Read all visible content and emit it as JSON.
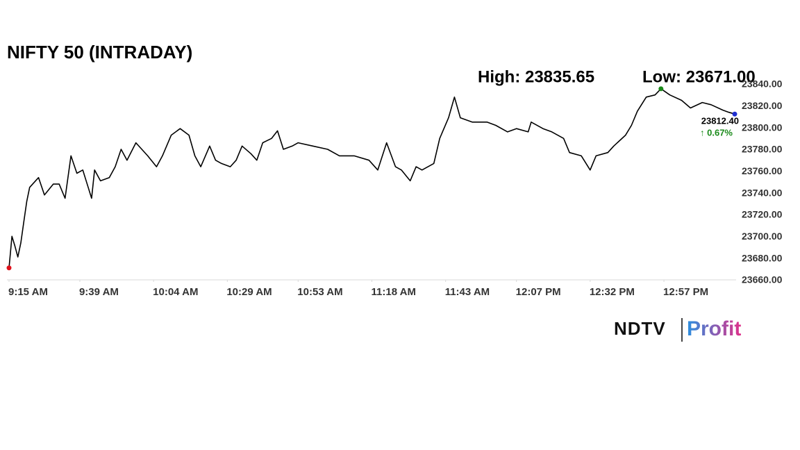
{
  "chart_data": {
    "type": "line",
    "title": "NIFTY 50 (INTRADAY)",
    "annotations": {
      "high": "High: 23835.65",
      "low": "Low: 23671.00",
      "last": "23812.40",
      "change": "↑ 0.67%"
    },
    "logo": {
      "left": "NDTV",
      "right": "Profit"
    },
    "color": "#000000",
    "high_color": "#1a8a1a",
    "low_color": "#e0101a",
    "last_color": "#1f2fd0",
    "change_color": "#1a8a1a",
    "x": [
      "9:15 AM",
      "9:16 AM",
      "9:17 AM",
      "9:18 AM",
      "9:19 AM",
      "9:20 AM",
      "9:21 AM",
      "9:22 AM",
      "9:25 AM",
      "9:27 AM",
      "9:30 AM",
      "9:32 AM",
      "9:34 AM",
      "9:36 AM",
      "9:38 AM",
      "9:40 AM",
      "9:43 AM",
      "9:44 AM",
      "9:46 AM",
      "9:49 AM",
      "9:51 AM",
      "9:53 AM",
      "9:55 AM",
      "9:58 AM",
      "10:00 AM",
      "10:02 AM",
      "10:05 AM",
      "10:07 AM",
      "10:10 AM",
      "10:13 AM",
      "10:16 AM",
      "10:18 AM",
      "10:20 AM",
      "10:23 AM",
      "10:25 AM",
      "10:27 AM",
      "10:30 AM",
      "10:32 AM",
      "10:34 AM",
      "10:37 AM",
      "10:39 AM",
      "10:41 AM",
      "10:44 AM",
      "10:46 AM",
      "10:48 AM",
      "10:51 AM",
      "10:53 AM",
      "10:58 AM",
      "11:03 AM",
      "11:07 AM",
      "11:12 AM",
      "11:17 AM",
      "11:20 AM",
      "11:23 AM",
      "11:26 AM",
      "11:28 AM",
      "11:31 AM",
      "11:33 AM",
      "11:35 AM",
      "11:39 AM",
      "11:41 AM",
      "11:44 AM",
      "11:46 AM",
      "11:48 AM",
      "11:52 AM",
      "11:57 AM",
      "12:00 PM",
      "12:04 PM",
      "12:07 PM",
      "12:11 PM",
      "12:12 PM",
      "12:16 PM",
      "12:19 PM",
      "12:23 PM",
      "12:25 PM",
      "12:29 PM",
      "12:32 PM",
      "12:34 PM",
      "12:38 PM",
      "12:40 PM",
      "12:44 PM",
      "12:46 PM",
      "12:48 PM",
      "12:51 PM",
      "12:54 PM",
      "12:56 PM",
      "12:59 PM",
      "1:03 PM",
      "1:06 PM",
      "1:10 PM",
      "1:13 PM",
      "1:17 PM",
      "1:19 PM",
      "1:21 PM"
    ],
    "values": [
      23671.0,
      23700,
      23691,
      23681,
      23694,
      23713,
      23732,
      23745,
      23754,
      23738,
      23748,
      23748,
      23735,
      23774,
      23758,
      23761,
      23735,
      23761,
      23751,
      23754,
      23764,
      23780,
      23770,
      23786,
      23780,
      23774,
      23764,
      23774,
      23793,
      23799,
      23793,
      23774,
      23764,
      23783,
      23770,
      23767,
      23764,
      23770,
      23783,
      23776,
      23770,
      23786,
      23790,
      23797,
      23780,
      23783,
      23786,
      23783,
      23780,
      23774,
      23774,
      23770,
      23761,
      23786,
      23764,
      23761,
      23751,
      23764,
      23761,
      23767,
      23790,
      23809,
      23828,
      23809,
      23805,
      23805,
      23802,
      23796,
      23799,
      23796,
      23805,
      23799,
      23796,
      23790,
      23777,
      23774,
      23761,
      23774,
      23777,
      23783,
      23793,
      23802,
      23815,
      23828,
      23830,
      23835.65,
      23830,
      23825,
      23818,
      23823,
      23821,
      23816,
      23814,
      23812.4
    ],
    "xlim": [
      "9:15 AM",
      "1:21 PM"
    ],
    "xticks": [
      "9:15 AM",
      "9:39 AM",
      "10:04 AM",
      "10:29 AM",
      "10:53 AM",
      "11:18 AM",
      "11:43 AM",
      "12:07 PM",
      "12:32 PM",
      "12:57 PM"
    ],
    "ylim": [
      23660,
      23840
    ],
    "yticks": [
      {
        "value": 23660,
        "label": "23660.00"
      },
      {
        "value": 23680,
        "label": "23680.00"
      },
      {
        "value": 23700,
        "label": "23700.00"
      },
      {
        "value": 23720,
        "label": "23720.00"
      },
      {
        "value": 23740,
        "label": "23740.00"
      },
      {
        "value": 23760,
        "label": "23760.00"
      },
      {
        "value": 23780,
        "label": "23780.00"
      },
      {
        "value": 23800,
        "label": "23800.00"
      },
      {
        "value": 23820,
        "label": "23820.00"
      },
      {
        "value": 23840,
        "label": "23840.00"
      }
    ]
  }
}
